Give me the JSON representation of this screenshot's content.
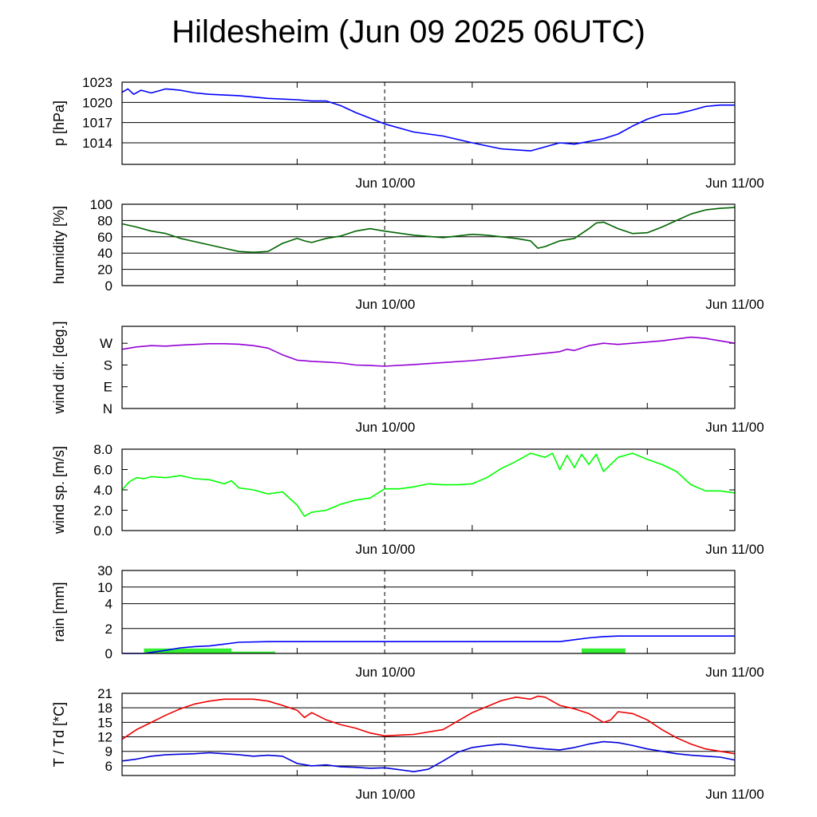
{
  "title": "Hildesheim (Jun 09 2025 06UTC)",
  "chart_data": [
    {
      "type": "line",
      "ylabel": "p [hPa]",
      "yticks": [
        "1023",
        "1020",
        "1017",
        "1014"
      ],
      "ytick_values": [
        1023,
        1020,
        1017,
        1014
      ],
      "ylim": [
        1010.8,
        1023
      ],
      "xtick_labels": [
        "Jun 10/00",
        "Jun 11/00"
      ],
      "x_hours": [
        0,
        6,
        12,
        18,
        24,
        30,
        36,
        42
      ],
      "grid": true,
      "series": [
        {
          "color": "#0000ff",
          "x": [
            0,
            0.4,
            0.8,
            1.3,
            2,
            3,
            4,
            5,
            6,
            8,
            10,
            12,
            13,
            14,
            15,
            16,
            18,
            20,
            22,
            24,
            26,
            28,
            30,
            31,
            32,
            33,
            34,
            35,
            36,
            37,
            38,
            39,
            40,
            41,
            42
          ],
          "values": [
            1021.5,
            1022.0,
            1021.2,
            1021.8,
            1021.4,
            1022.0,
            1021.8,
            1021.4,
            1021.2,
            1021.0,
            1020.6,
            1020.4,
            1020.2,
            1020.2,
            1019.5,
            1018.5,
            1016.8,
            1015.6,
            1015.0,
            1014.0,
            1013.1,
            1012.8,
            1014.0,
            1013.8,
            1014.2,
            1014.6,
            1015.3,
            1016.5,
            1017.5,
            1018.2,
            1018.3,
            1018.8,
            1019.4,
            1019.6,
            1019.6
          ]
        }
      ]
    },
    {
      "type": "line",
      "ylabel": "humidity [%]",
      "yticks": [
        "100",
        "80",
        "60",
        "40",
        "20",
        "0"
      ],
      "ytick_values": [
        100,
        80,
        60,
        40,
        20,
        0
      ],
      "ylim": [
        0,
        100
      ],
      "xtick_labels": [
        "Jun 10/00",
        "Jun 11/00"
      ],
      "grid": true,
      "series": [
        {
          "color": "#006400",
          "x": [
            0,
            1,
            2,
            3,
            4,
            5,
            6,
            7,
            8,
            9,
            10,
            11,
            12,
            12.5,
            13,
            14,
            15,
            16,
            17,
            18,
            20,
            22,
            24,
            25,
            26,
            27,
            28,
            28.5,
            29,
            30,
            31,
            32,
            32.5,
            33,
            34,
            35,
            36,
            37,
            38,
            39,
            40,
            41,
            42
          ],
          "values": [
            76,
            72,
            67,
            64,
            58,
            54,
            50,
            46,
            42,
            41,
            42,
            52,
            58,
            55,
            53,
            58,
            61,
            67,
            70,
            67,
            62,
            59,
            63,
            62,
            60,
            58,
            55,
            46,
            48,
            55,
            58,
            70,
            77,
            78,
            70,
            64,
            65,
            72,
            80,
            88,
            93,
            95,
            96
          ]
        }
      ]
    },
    {
      "type": "line",
      "ylabel": "wind dir. [deg.]",
      "yticks": [
        "W",
        "S",
        "E",
        "N"
      ],
      "ytick_values": [
        270,
        180,
        90,
        0
      ],
      "ylim": [
        0,
        340
      ],
      "xtick_labels": [
        "Jun 10/00",
        "Jun 11/00"
      ],
      "grid": false,
      "series": [
        {
          "color": "#9400d3",
          "x": [
            0,
            1,
            2,
            3,
            4,
            5,
            6,
            7,
            8,
            9,
            10,
            11,
            12,
            13,
            14,
            15,
            16,
            17,
            18,
            20,
            22,
            24,
            26,
            28,
            30,
            30.5,
            31,
            32,
            33,
            34,
            35,
            36,
            37,
            38,
            39,
            40,
            41,
            42
          ],
          "values": [
            245,
            255,
            260,
            258,
            262,
            265,
            268,
            268,
            266,
            260,
            250,
            222,
            200,
            195,
            192,
            188,
            180,
            178,
            175,
            182,
            190,
            198,
            210,
            222,
            235,
            245,
            240,
            260,
            270,
            265,
            270,
            275,
            280,
            288,
            295,
            290,
            280,
            270
          ]
        }
      ]
    },
    {
      "type": "line",
      "ylabel": "wind sp. [m/s]",
      "yticks": [
        "8.0",
        "6.0",
        "4.0",
        "2.0",
        "0.0"
      ],
      "ytick_values": [
        8,
        6,
        4,
        2,
        0
      ],
      "ylim": [
        0,
        8
      ],
      "xtick_labels": [
        "Jun 10/00",
        "Jun 11/00"
      ],
      "grid": false,
      "series": [
        {
          "color": "#00ff00",
          "x": [
            0,
            0.5,
            1,
            1.5,
            2,
            3,
            4,
            5,
            6,
            7,
            7.5,
            8,
            9,
            10,
            11,
            12,
            12.5,
            13,
            14,
            15,
            16,
            17,
            18,
            19,
            20,
            21,
            22,
            23,
            24,
            25,
            26,
            27,
            28,
            29,
            29.5,
            30,
            30.5,
            31,
            31.5,
            32,
            32.5,
            33,
            34,
            35,
            36,
            37,
            38,
            39,
            40,
            41,
            42
          ],
          "values": [
            4.0,
            4.8,
            5.2,
            5.1,
            5.3,
            5.2,
            5.4,
            5.1,
            5.0,
            4.6,
            4.9,
            4.2,
            4.0,
            3.6,
            3.8,
            2.5,
            1.4,
            1.8,
            2.0,
            2.6,
            3.0,
            3.2,
            4.1,
            4.1,
            4.3,
            4.6,
            4.5,
            4.5,
            4.6,
            5.2,
            6.1,
            6.8,
            7.6,
            7.2,
            7.6,
            6.0,
            7.4,
            6.2,
            7.5,
            6.5,
            7.5,
            5.8,
            7.2,
            7.6,
            7.0,
            6.5,
            5.8,
            4.5,
            3.9,
            3.9,
            3.7
          ]
        }
      ]
    },
    {
      "type": "bar+line",
      "ylabel": "rain [mm]",
      "yticks": [
        "30",
        "10",
        "4",
        "2",
        "0"
      ],
      "ytick_values": [
        30,
        10,
        4,
        2,
        0
      ],
      "ylim": [
        0,
        30
      ],
      "xtick_labels": [
        "Jun 10/00",
        "Jun 11/00"
      ],
      "grid": true,
      "bars": {
        "color": "#33ee33",
        "intervals": [
          [
            1.5,
            7.5,
            0.4
          ],
          [
            7.5,
            10.5,
            0.15
          ],
          [
            31.5,
            34.5,
            0.4
          ]
        ]
      },
      "series": [
        {
          "color": "#0000ff",
          "x": [
            0,
            1.5,
            3,
            4,
            5,
            6,
            7,
            8,
            10,
            12,
            18,
            24,
            28,
            30,
            31,
            32,
            33,
            34,
            36,
            42
          ],
          "values": [
            0,
            0,
            0.25,
            0.45,
            0.55,
            0.6,
            0.75,
            0.9,
            0.95,
            0.95,
            0.95,
            0.95,
            0.95,
            0.95,
            1.1,
            1.25,
            1.35,
            1.4,
            1.4,
            1.4
          ]
        }
      ]
    },
    {
      "type": "line",
      "ylabel": "T / Td [*C]",
      "yticks": [
        "21",
        "18",
        "15",
        "12",
        "9",
        "6"
      ],
      "ytick_values": [
        21,
        18,
        15,
        12,
        9,
        6
      ],
      "ylim": [
        4,
        21
      ],
      "xtick_labels": [
        "Jun 10/00",
        "Jun 11/00"
      ],
      "grid": true,
      "series": [
        {
          "color": "#ee0000",
          "x": [
            0,
            1,
            2,
            3,
            4,
            5,
            6,
            7,
            8,
            9,
            10,
            11,
            12,
            12.5,
            13,
            14,
            15,
            16,
            17,
            18,
            20,
            22,
            24,
            26,
            27,
            28,
            28.5,
            29,
            30,
            31,
            32,
            33,
            33.5,
            34,
            35,
            36,
            37,
            38,
            39,
            40,
            41,
            42
          ],
          "values": [
            11.5,
            13.5,
            15.0,
            16.5,
            17.8,
            18.8,
            19.4,
            19.8,
            19.8,
            19.8,
            19.4,
            18.5,
            17.5,
            16.0,
            17.0,
            15.5,
            14.5,
            13.8,
            12.8,
            12.2,
            12.5,
            13.5,
            17.0,
            19.5,
            20.2,
            19.8,
            20.4,
            20.2,
            18.5,
            17.8,
            16.8,
            15.0,
            15.5,
            17.2,
            16.8,
            15.5,
            13.5,
            11.8,
            10.5,
            9.5,
            9.0,
            8.5
          ]
        },
        {
          "color": "#0000dd",
          "x": [
            0,
            1,
            2,
            3,
            4,
            5,
            6,
            7,
            8,
            9,
            10,
            11,
            12,
            13,
            14,
            15,
            16,
            17,
            18,
            19,
            20,
            21,
            22,
            23,
            24,
            25,
            26,
            27,
            28,
            29,
            30,
            31,
            32,
            33,
            34,
            35,
            36,
            37,
            38,
            39,
            40,
            41,
            42
          ],
          "values": [
            7.0,
            7.4,
            8.0,
            8.3,
            8.4,
            8.5,
            8.7,
            8.5,
            8.3,
            8.0,
            8.2,
            8.0,
            6.5,
            6.0,
            6.2,
            5.8,
            5.7,
            5.5,
            5.6,
            5.2,
            4.8,
            5.3,
            7.0,
            8.8,
            9.8,
            10.2,
            10.5,
            10.2,
            9.8,
            9.5,
            9.3,
            9.8,
            10.5,
            11.0,
            10.8,
            10.2,
            9.5,
            9.0,
            8.5,
            8.2,
            8.0,
            7.8,
            7.2
          ]
        }
      ]
    }
  ]
}
